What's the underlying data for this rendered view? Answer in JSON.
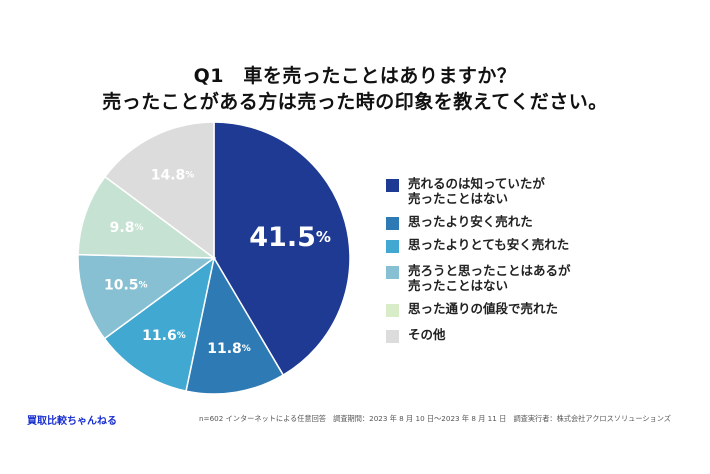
{
  "title": {
    "line1": "Q1　車を売ったことはありますか？",
    "line2": "売ったことがある方は売った時の印象を教えてください。"
  },
  "chart_data": {
    "type": "pie",
    "title": "Q1　車を売ったことはありますか？ 売ったことがある方は売った時の印象を教えてください。",
    "unit": "%",
    "start": "12 o'clock, clockwise",
    "legend_position": "right",
    "slices": [
      {
        "label": "売れるのは知っていたが売ったことはない",
        "legend_lines": [
          "売れるのは知っていたが",
          "売ったことはない"
        ],
        "value": 41.5,
        "value_text": "41.5",
        "color": "#1f3a93",
        "label_color": "#ffffff"
      },
      {
        "label": "思ったより安く売れた",
        "legend_lines": [
          "思ったより安く売れた"
        ],
        "value": 11.8,
        "value_text": "11.8",
        "color": "#2e7ab4",
        "label_color": "#ffffff"
      },
      {
        "label": "思ったよりとても安く売れた",
        "legend_lines": [
          "思ったよりとても安く売れた"
        ],
        "value": 11.6,
        "value_text": "11.6",
        "color": "#40a8d1",
        "label_color": "#ffffff"
      },
      {
        "label": "売ろうと思ったことはあるが売ったことはない",
        "legend_lines": [
          "売ろうと思ったことはあるが",
          "売ったことはない"
        ],
        "value": 10.5,
        "value_text": "10.5",
        "color": "#86c0d2",
        "label_color": "#ffffff"
      },
      {
        "label": "思った通りの値段で売れた",
        "legend_lines": [
          "思った通りの値段で売れた"
        ],
        "value": 9.8,
        "value_text": "9.8",
        "color": "#c6e2d2",
        "legend_color": "#d8ecc8",
        "label_color": "#ffffff"
      },
      {
        "label": "その他",
        "legend_lines": [
          "その他"
        ],
        "value": 14.8,
        "value_text": "14.8",
        "color": "#dcdcdc",
        "label_color": "#ffffff"
      }
    ]
  },
  "footer": {
    "brand": "買取比較ちゃんねる",
    "note": "n=602 インターネットによる任意回答　調査期間：2023 年 8 月 10 日〜2023 年 8 月 11 日　調査実行者：株式会社アクロスソリューションズ"
  }
}
